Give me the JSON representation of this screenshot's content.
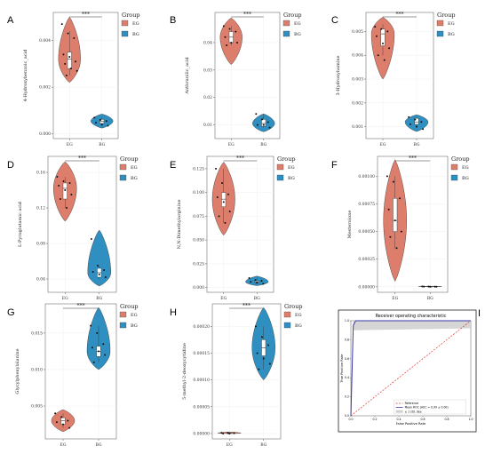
{
  "colors": {
    "EG": "#dd7d6b",
    "BG": "#2e8fc0",
    "roc_line": "#3a3aa8",
    "roc_band": "#d0d0d0",
    "reference": "#e03a2e"
  },
  "chart_data": [
    {
      "panel": "A",
      "type": "violin",
      "categories": [
        "EG",
        "BG"
      ],
      "ylabel": "4-Hydroxybenzoic_acid",
      "yticks": [
        "0.000",
        "0.002",
        "0.004"
      ],
      "ytick_values": [
        0,
        0.002,
        0.004
      ],
      "ylim": [
        -0.0002,
        0.0052
      ],
      "legend": {
        "title": "Group",
        "entries": [
          "EG",
          "BG"
        ]
      },
      "significance": "***",
      "series": [
        {
          "name": "EG",
          "points": [
            0.0047,
            0.0043,
            0.0041,
            0.0034,
            0.0033,
            0.0031,
            0.003,
            0.0028,
            0.0027,
            0.0025
          ],
          "box": {
            "q1": 0.0028,
            "median": 0.0032,
            "q3": 0.0035,
            "min": 0.0025,
            "max": 0.0044
          },
          "violin": [
            0.0022,
            0.005
          ]
        },
        {
          "name": "BG",
          "points": [
            0.0007,
            0.0006,
            0.00055,
            0.00048,
            0.0004,
            0.00035
          ],
          "box": {
            "q1": 0.00045,
            "median": 0.00055,
            "q3": 0.00062,
            "min": 0.00035,
            "max": 0.0007
          },
          "violin": [
            0.00025,
            0.00085
          ]
        }
      ]
    },
    {
      "panel": "B",
      "type": "violin",
      "categories": [
        "EG",
        "BG"
      ],
      "ylabel": "Anthranilic_acid",
      "yticks": [
        "0.01",
        "0.02",
        "0.03",
        "0.04"
      ],
      "ytick_values": [
        0.01,
        0.02,
        0.03,
        0.04
      ],
      "ylim": [
        0.005,
        0.051
      ],
      "legend": {
        "title": "Group",
        "entries": [
          "EG",
          "BG"
        ]
      },
      "significance": "***",
      "series": [
        {
          "name": "EG",
          "points": [
            0.046,
            0.045,
            0.044,
            0.042,
            0.04,
            0.04,
            0.039
          ],
          "box": {
            "q1": 0.04,
            "median": 0.042,
            "q3": 0.044,
            "min": 0.039,
            "max": 0.046
          },
          "violin": [
            0.032,
            0.049
          ]
        },
        {
          "name": "BG",
          "points": [
            0.014,
            0.012,
            0.011,
            0.01,
            0.01,
            0.009
          ],
          "box": {
            "q1": 0.0095,
            "median": 0.0105,
            "q3": 0.012,
            "min": 0.009,
            "max": 0.014
          },
          "violin": [
            0.0075,
            0.014
          ]
        }
      ]
    },
    {
      "panel": "C",
      "type": "violin",
      "categories": [
        "EG",
        "BG"
      ],
      "ylabel": "3-Hydroxyhamine",
      "yticks": [
        "0.001",
        "0.002",
        "0.003",
        "0.004",
        "0.005"
      ],
      "ytick_values": [
        0.001,
        0.002,
        0.003,
        0.004,
        0.005
      ],
      "ylim": [
        0.0005,
        0.0058
      ],
      "legend": {
        "title": "Group",
        "entries": [
          "EG",
          "BG"
        ]
      },
      "significance": "***",
      "series": [
        {
          "name": "EG",
          "points": [
            0.0052,
            0.0051,
            0.005,
            0.0048,
            0.0045,
            0.0043,
            0.004,
            0.0038
          ],
          "box": {
            "q1": 0.0044,
            "median": 0.0049,
            "q3": 0.0051,
            "min": 0.004,
            "max": 0.0053
          },
          "violin": [
            0.003,
            0.0056
          ]
        },
        {
          "name": "BG",
          "points": [
            0.0014,
            0.0013,
            0.0012,
            0.0011,
            0.001,
            0.0009
          ],
          "box": {
            "q1": 0.0011,
            "median": 0.0012,
            "q3": 0.00135,
            "min": 0.001,
            "max": 0.0014
          },
          "violin": [
            0.0008,
            0.0015
          ]
        }
      ]
    },
    {
      "panel": "D",
      "type": "violin",
      "categories": [
        "EG",
        "BG"
      ],
      "ylabel": "L-Pyroglutamic acid",
      "yticks": [
        "0.04",
        "0.08",
        "0.12",
        "0.16"
      ],
      "ytick_values": [
        0.04,
        0.08,
        0.12,
        0.16
      ],
      "ylim": [
        0.025,
        0.178
      ],
      "legend": {
        "title": "Group",
        "entries": [
          "EG",
          "BG"
        ]
      },
      "significance": "***",
      "series": [
        {
          "name": "EG",
          "points": [
            0.155,
            0.15,
            0.148,
            0.145,
            0.14,
            0.135,
            0.13,
            0.12
          ],
          "box": {
            "q1": 0.13,
            "median": 0.142,
            "q3": 0.148,
            "min": 0.12,
            "max": 0.155
          },
          "violin": [
            0.105,
            0.172
          ]
        },
        {
          "name": "BG",
          "points": [
            0.085,
            0.055,
            0.05,
            0.048,
            0.045,
            0.042
          ],
          "box": {
            "q1": 0.042,
            "median": 0.047,
            "q3": 0.052,
            "min": 0.04,
            "max": 0.055
          },
          "violin": [
            0.032,
            0.095
          ]
        }
      ]
    },
    {
      "panel": "E",
      "type": "violin",
      "categories": [
        "EG",
        "BG"
      ],
      "ylabel": "N,N-Dimethylarginine",
      "yticks": [
        "0.000",
        "0.025",
        "0.050",
        "0.075",
        "0.100",
        "0.125"
      ],
      "ytick_values": [
        0,
        0.025,
        0.05,
        0.075,
        0.1,
        0.125
      ],
      "ylim": [
        -0.005,
        0.138
      ],
      "legend": {
        "title": "Group",
        "entries": [
          "EG",
          "BG"
        ]
      },
      "significance": "***",
      "series": [
        {
          "name": "EG",
          "points": [
            0.125,
            0.11,
            0.098,
            0.095,
            0.09,
            0.08,
            0.075,
            0.068
          ],
          "box": {
            "q1": 0.085,
            "median": 0.093,
            "q3": 0.1,
            "min": 0.068,
            "max": 0.125
          },
          "violin": [
            0.055,
            0.132
          ]
        },
        {
          "name": "BG",
          "points": [
            0.01,
            0.008,
            0.007,
            0.006,
            0.005,
            0.004
          ],
          "box": {
            "q1": 0.005,
            "median": 0.006,
            "q3": 0.007,
            "min": 0.004,
            "max": 0.01
          },
          "violin": [
            0.002,
            0.012
          ]
        }
      ]
    },
    {
      "panel": "F",
      "type": "violin",
      "categories": [
        "EG",
        "BG"
      ],
      "ylabel": "Mesterolone",
      "yticks": [
        "0.00000",
        "0.00025",
        "0.00050",
        "0.00075",
        "0.00100"
      ],
      "ytick_values": [
        0,
        0.00025,
        0.0005,
        0.00075,
        0.001
      ],
      "ylim": [
        -5e-05,
        0.00118
      ],
      "legend": {
        "title": "Group",
        "entries": [
          "EG",
          "BG"
        ]
      },
      "significance": "***",
      "series": [
        {
          "name": "EG",
          "points": [
            0.001,
            0.00095,
            0.0008,
            0.0007,
            0.0006,
            0.0005,
            0.00045,
            0.00035
          ],
          "box": {
            "q1": 0.0005,
            "median": 0.0006,
            "q3": 0.0008,
            "min": 0.00035,
            "max": 0.001
          },
          "violin": [
            5e-05,
            0.00115
          ]
        },
        {
          "name": "BG",
          "points": [
            3e-06,
            2e-06,
            1e-06,
            1e-06,
            0.0,
            0.0
          ],
          "box": {
            "q1": 0.0,
            "median": 1e-06,
            "q3": 2e-06,
            "min": 0.0,
            "max": 3e-06
          },
          "violin": [
            0.0,
            5e-06
          ]
        }
      ]
    },
    {
      "panel": "G",
      "type": "violin",
      "categories": [
        "EG",
        "BG"
      ],
      "ylabel": "Glycylphenylalanine",
      "yticks": [
        "0.005",
        "0.010",
        "0.015"
      ],
      "ytick_values": [
        0.005,
        0.01,
        0.015
      ],
      "ylim": [
        0.0005,
        0.019
      ],
      "legend": {
        "title": "Group",
        "entries": [
          "EG",
          "BG"
        ]
      },
      "significance": "***",
      "series": [
        {
          "name": "EG",
          "points": [
            0.004,
            0.0035,
            0.003,
            0.0028,
            0.0025,
            0.002
          ],
          "box": {
            "q1": 0.0025,
            "median": 0.003,
            "q3": 0.0034,
            "min": 0.002,
            "max": 0.004
          },
          "violin": [
            0.0015,
            0.0045
          ]
        },
        {
          "name": "BG",
          "points": [
            0.016,
            0.015,
            0.0135,
            0.013,
            0.0125,
            0.012,
            0.011
          ],
          "box": {
            "q1": 0.0118,
            "median": 0.0125,
            "q3": 0.0132,
            "min": 0.011,
            "max": 0.016
          },
          "violin": [
            0.01,
            0.0185
          ]
        }
      ]
    },
    {
      "panel": "H",
      "type": "violin",
      "categories": [
        "EG",
        "BG"
      ],
      "ylabel": "5-methyl-2-deoxycytidine",
      "yticks": [
        "0.00000",
        "0.00005",
        "0.00010",
        "0.00015",
        "0.00020"
      ],
      "ytick_values": [
        0,
        5e-05,
        0.0001,
        0.00015,
        0.0002
      ],
      "ylim": [
        -1e-05,
        0.000242
      ],
      "legend": {
        "title": "Group",
        "entries": [
          "EG",
          "BG"
        ]
      },
      "significance": "***",
      "series": [
        {
          "name": "EG",
          "points": [
            1.5e-06,
            1e-06,
            5e-07,
            0.0,
            0.0
          ],
          "box": {
            "q1": 0.0,
            "median": 5e-07,
            "q3": 1e-06,
            "min": 0.0,
            "max": 1.5e-06
          },
          "violin": [
            0.0,
            3e-06
          ]
        },
        {
          "name": "BG",
          "points": [
            0.0002,
            0.00018,
            0.000165,
            0.00015,
            0.00014,
            0.00013,
            0.00012
          ],
          "box": {
            "q1": 0.000145,
            "median": 0.00016,
            "q3": 0.000175,
            "min": 0.00012,
            "max": 0.0002
          },
          "violin": [
            0.0001,
            0.000235
          ]
        }
      ]
    },
    {
      "panel": "I",
      "type": "line",
      "title": "Receiver operating characteristic",
      "xlabel": "False Positive Rate",
      "ylabel": "True Positive Rate",
      "xlim": [
        0,
        1
      ],
      "ylim": [
        0,
        1
      ],
      "xticks": [
        "0.0",
        "0.2",
        "0.4",
        "0.6",
        "0.8",
        "1.0"
      ],
      "yticks": [
        "0.0",
        "0.2",
        "0.4",
        "0.6",
        "0.8",
        "1.0"
      ],
      "legend": {
        "placement": "bottom-right",
        "entries": [
          "Reference",
          "Mean ROC (AUC = 0.99 ± 0.00)",
          "± 1 std. dev."
        ]
      },
      "series": [
        {
          "name": "Reference",
          "x": [
            0,
            1
          ],
          "y": [
            0,
            1
          ]
        },
        {
          "name": "Mean ROC (AUC = 0.99 ± 0.00)",
          "x": [
            0,
            0.02,
            0.04,
            1
          ],
          "y": [
            0,
            0.95,
            1,
            1
          ]
        },
        {
          "name": "± 1 std. dev.",
          "x": [
            0,
            0.02,
            1
          ],
          "y_low": [
            0,
            0.9,
            0.92
          ],
          "y_high": [
            0,
            1,
            1
          ]
        }
      ]
    }
  ]
}
